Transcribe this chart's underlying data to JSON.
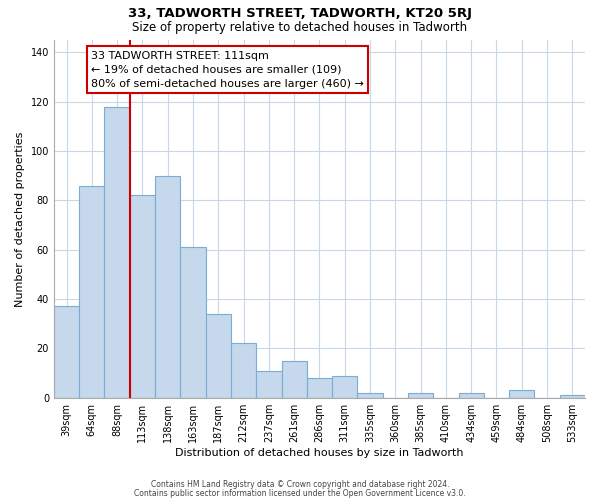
{
  "title": "33, TADWORTH STREET, TADWORTH, KT20 5RJ",
  "subtitle": "Size of property relative to detached houses in Tadworth",
  "xlabel": "Distribution of detached houses by size in Tadworth",
  "ylabel": "Number of detached properties",
  "bar_labels": [
    "39sqm",
    "64sqm",
    "88sqm",
    "113sqm",
    "138sqm",
    "163sqm",
    "187sqm",
    "212sqm",
    "237sqm",
    "261sqm",
    "286sqm",
    "311sqm",
    "335sqm",
    "360sqm",
    "385sqm",
    "410sqm",
    "434sqm",
    "459sqm",
    "484sqm",
    "508sqm",
    "533sqm"
  ],
  "bar_values": [
    37,
    86,
    118,
    82,
    90,
    61,
    34,
    22,
    11,
    15,
    8,
    9,
    2,
    0,
    2,
    0,
    2,
    0,
    3,
    0,
    1
  ],
  "bar_color": "#c5d8ec",
  "bar_edge_color": "#7aadd4",
  "ylim": [
    0,
    145
  ],
  "yticks": [
    0,
    20,
    40,
    60,
    80,
    100,
    120,
    140
  ],
  "vline_color": "#cc0000",
  "annotation_text": "33 TADWORTH STREET: 111sqm\n← 19% of detached houses are smaller (109)\n80% of semi-detached houses are larger (460) →",
  "annotation_box_color": "#ffffff",
  "annotation_box_edge": "#cc0000",
  "footer_line1": "Contains HM Land Registry data © Crown copyright and database right 2024.",
  "footer_line2": "Contains public sector information licensed under the Open Government Licence v3.0.",
  "background_color": "#ffffff",
  "grid_color": "#c8d8e8"
}
